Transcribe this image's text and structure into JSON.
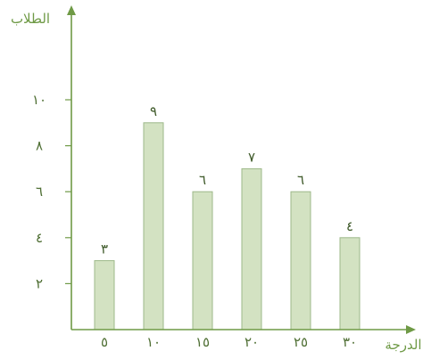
{
  "chart_data": {
    "type": "bar",
    "title": "",
    "xlabel": "الدرجة",
    "ylabel": "الطلاب",
    "categories": [
      "٥",
      "١٠",
      "١٥",
      "٢٠",
      "٢٥",
      "٣٠"
    ],
    "x": [
      5,
      10,
      15,
      20,
      25,
      30
    ],
    "values": [
      3,
      9,
      6,
      7,
      6,
      4
    ],
    "value_labels": [
      "٣",
      "٩",
      "٦",
      "٧",
      "٦",
      "٤"
    ],
    "y_ticks": [
      2,
      4,
      6,
      8,
      10
    ],
    "y_tick_labels": [
      "٢",
      "٤",
      "٦",
      "٨",
      "١٠"
    ],
    "ylim": [
      0,
      10
    ],
    "grid": false,
    "legend": "none",
    "colors": {
      "bar_fill": "#d3e2c2",
      "bar_stroke": "#9db889",
      "axis": "#6f9a46",
      "text": "#4f6f34"
    }
  }
}
